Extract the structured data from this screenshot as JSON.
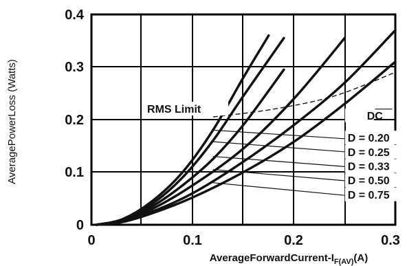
{
  "chart_data": {
    "type": "line",
    "title": "",
    "xlabel": "AverageForwardCurrent-I",
    "xlabel_sub": "F(AV)",
    "xlabel_unit": "(A)",
    "ylabel": "AveragePowerLoss (Watts)",
    "xlim": [
      0,
      0.3
    ],
    "ylim": [
      0,
      0.4
    ],
    "x_ticks": [
      "0",
      "0.1",
      "0.2",
      "0.3"
    ],
    "y_ticks": [
      "0",
      "0.1",
      "0.2",
      "0.3",
      "0.4"
    ],
    "grid": true,
    "rms_limit_label": "RMS Limit",
    "series": [
      {
        "name": "D = 0.20",
        "x": [
          0.005,
          0.03,
          0.06,
          0.09,
          0.12,
          0.15,
          0.175
        ],
        "y": [
          0,
          0.01,
          0.045,
          0.1,
          0.18,
          0.28,
          0.36
        ]
      },
      {
        "name": "D = 0.25",
        "x": [
          0.005,
          0.03,
          0.06,
          0.09,
          0.12,
          0.15,
          0.19
        ],
        "y": [
          0,
          0.01,
          0.04,
          0.09,
          0.16,
          0.245,
          0.355
        ]
      },
      {
        "name": "D = 0.33",
        "x": [
          0.005,
          0.03,
          0.06,
          0.09,
          0.12,
          0.15,
          0.19
        ],
        "y": [
          0,
          0.008,
          0.035,
          0.075,
          0.125,
          0.19,
          0.295
        ]
      },
      {
        "name": "D = 0.50",
        "x": [
          0.005,
          0.03,
          0.06,
          0.1,
          0.15,
          0.2,
          0.25
        ],
        "y": [
          0,
          0.007,
          0.03,
          0.075,
          0.145,
          0.24,
          0.355
        ]
      },
      {
        "name": "D = 0.75",
        "x": [
          0.005,
          0.03,
          0.06,
          0.1,
          0.15,
          0.2,
          0.25,
          0.3
        ],
        "y": [
          0,
          0.006,
          0.025,
          0.06,
          0.12,
          0.19,
          0.27,
          0.37
        ]
      },
      {
        "name": "DC",
        "x": [
          0.005,
          0.03,
          0.06,
          0.1,
          0.15,
          0.2,
          0.25,
          0.3
        ],
        "y": [
          0,
          0.005,
          0.022,
          0.052,
          0.1,
          0.158,
          0.23,
          0.31
        ]
      }
    ],
    "rms_limit_line": {
      "x": [
        0.12,
        0.18,
        0.24,
        0.3
      ],
      "y": [
        0.205,
        0.22,
        0.245,
        0.29
      ]
    },
    "leaders": [
      {
        "name": "DC",
        "from": [
          0.28,
          0.22
        ],
        "to": [
          0.297,
          0.22
        ]
      },
      {
        "name": "D = 0.20",
        "from": [
          0.12,
          0.18
        ],
        "to": [
          0.255,
          0.163
        ]
      },
      {
        "name": "D = 0.25",
        "from": [
          0.12,
          0.158
        ],
        "to": [
          0.255,
          0.138
        ]
      },
      {
        "name": "D = 0.33",
        "from": [
          0.12,
          0.13
        ],
        "to": [
          0.255,
          0.11
        ]
      },
      {
        "name": "D = 0.50",
        "from": [
          0.12,
          0.105
        ],
        "to": [
          0.255,
          0.083
        ]
      },
      {
        "name": "D = 0.75",
        "from": [
          0.12,
          0.08
        ],
        "to": [
          0.255,
          0.055
        ]
      }
    ],
    "label_positions": [
      {
        "name": "DC",
        "x": 0.253,
        "y": 0.2
      },
      {
        "name": "D = 0.20",
        "x": 0.253,
        "y": 0.158
      },
      {
        "name": "D = 0.25",
        "x": 0.253,
        "y": 0.131
      },
      {
        "name": "D = 0.33",
        "x": 0.253,
        "y": 0.104
      },
      {
        "name": "D = 0.50",
        "x": 0.253,
        "y": 0.077
      },
      {
        "name": "D = 0.75",
        "x": 0.253,
        "y": 0.05
      }
    ],
    "rms_label_position": {
      "x": 0.055,
      "y": 0.213
    }
  }
}
